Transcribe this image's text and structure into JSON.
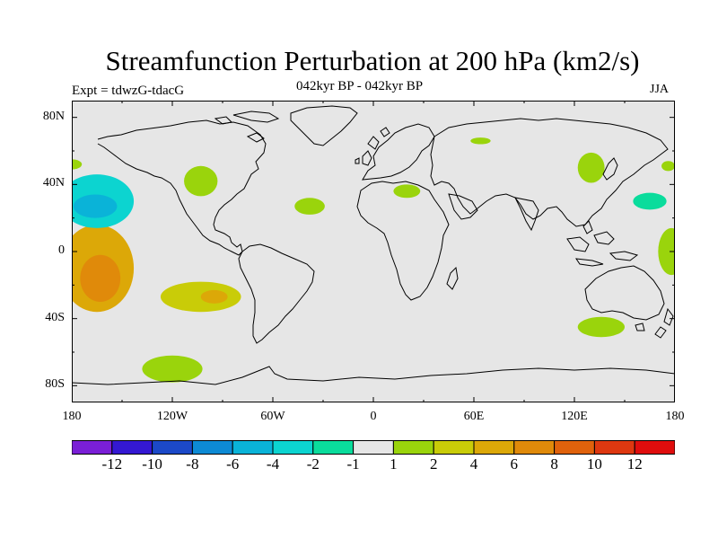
{
  "title": "Streamfunction Perturbation at 200 hPa (km2/s)",
  "left_string": "Expt = tdwzG-tdacG",
  "center_string": "042kyr BP - 042kyr BP",
  "right_string": "JJA",
  "colors": {
    "background": "#e6e6e6",
    "coast": "#000000"
  },
  "lat_labels": [
    {
      "text": "80N",
      "lat": 80
    },
    {
      "text": "40N",
      "lat": 40
    },
    {
      "text": "0",
      "lat": 0
    },
    {
      "text": "40S",
      "lat": -40
    },
    {
      "text": "80S",
      "lat": -80
    }
  ],
  "lon_labels": [
    {
      "text": "180",
      "lon": -180
    },
    {
      "text": "120W",
      "lon": -120
    },
    {
      "text": "60W",
      "lon": -60
    },
    {
      "text": "0",
      "lon": 0
    },
    {
      "text": "60E",
      "lon": 60
    },
    {
      "text": "120E",
      "lon": 120
    },
    {
      "text": "180",
      "lon": 180
    }
  ],
  "colorbar": {
    "colors": [
      "#7a1fd6",
      "#3418d2",
      "#1c49c8",
      "#0d8ad4",
      "#0ab3d8",
      "#0cd4d0",
      "#0adc9c",
      "#e6e6e6",
      "#9ad40c",
      "#c9cc08",
      "#dca808",
      "#e08a0a",
      "#e0620c",
      "#de3810",
      "#e00d0d"
    ],
    "labels": [
      "-12",
      "-10",
      "-8",
      "-6",
      "-4",
      "-2",
      "-1",
      "1",
      "2",
      "4",
      "6",
      "8",
      "10",
      "12"
    ]
  },
  "chart_data": {
    "type": "heatmap",
    "title": "Streamfunction Perturbation at 200 hPa (km2/s)",
    "subtitle": "042kyr BP - 042kyr BP",
    "season": "JJA",
    "experiment": "tdwzG-tdacG",
    "xlim": [
      -180,
      180
    ],
    "ylim": [
      -90,
      90
    ],
    "contour_levels": [
      -12,
      -10,
      -8,
      -6,
      -4,
      -2,
      -1,
      1,
      2,
      4,
      6,
      8,
      10,
      12
    ],
    "anomalies": [
      {
        "lon": -165,
        "lat": -10,
        "rx": 22,
        "ry": 26,
        "value": 4
      },
      {
        "lon": -163,
        "lat": -16,
        "rx": 12,
        "ry": 14,
        "value": 6
      },
      {
        "lon": -165,
        "lat": 30,
        "rx": 22,
        "ry": 16,
        "value": -4
      },
      {
        "lon": -166,
        "lat": 27,
        "rx": 13,
        "ry": 7,
        "value": -6
      },
      {
        "lon": -103,
        "lat": -27,
        "rx": 24,
        "ry": 9,
        "value": 2
      },
      {
        "lon": -95,
        "lat": -27,
        "rx": 8,
        "ry": 4,
        "value": 4
      },
      {
        "lon": -103,
        "lat": 42,
        "rx": 10,
        "ry": 9,
        "value": 1
      },
      {
        "lon": -72,
        "lat": 44,
        "rx": 9,
        "ry": 6,
        "value": -1
      },
      {
        "lon": -38,
        "lat": 27,
        "rx": 9,
        "ry": 5,
        "value": 1
      },
      {
        "lon": -45,
        "lat": -20,
        "rx": 6,
        "ry": 12,
        "value": -1
      },
      {
        "lon": -70,
        "lat": -51,
        "rx": 6,
        "ry": 4,
        "value": -1
      },
      {
        "lon": -120,
        "lat": -70,
        "rx": 18,
        "ry": 8,
        "value": 1
      },
      {
        "lon": -172,
        "lat": 65,
        "rx": 6,
        "ry": 3,
        "value": -1
      },
      {
        "lon": -180,
        "lat": 52,
        "rx": 6,
        "ry": 3,
        "value": 1
      },
      {
        "lon": -10,
        "lat": 54,
        "rx": 13,
        "ry": 11,
        "value": -1
      },
      {
        "lon": 20,
        "lat": 36,
        "rx": 8,
        "ry": 4,
        "value": 1
      },
      {
        "lon": 48,
        "lat": 48,
        "rx": 16,
        "ry": 7,
        "value": -1
      },
      {
        "lon": 64,
        "lat": 66,
        "rx": 6,
        "ry": 2,
        "value": 1
      },
      {
        "lon": 28,
        "lat": -20,
        "rx": 18,
        "ry": 9,
        "value": -1
      },
      {
        "lon": 125,
        "lat": -14,
        "rx": 28,
        "ry": 18,
        "value": -1
      },
      {
        "lon": 97,
        "lat": -22,
        "rx": 18,
        "ry": 12,
        "value": -1
      },
      {
        "lon": 136,
        "lat": -45,
        "rx": 14,
        "ry": 6,
        "value": 1
      },
      {
        "lon": 160,
        "lat": -28,
        "rx": 14,
        "ry": 9,
        "value": -1
      },
      {
        "lon": 155,
        "lat": 35,
        "rx": 28,
        "ry": 10,
        "value": -1
      },
      {
        "lon": 165,
        "lat": 30,
        "rx": 10,
        "ry": 5,
        "value": -2
      },
      {
        "lon": 130,
        "lat": 50,
        "rx": 8,
        "ry": 9,
        "value": 1
      },
      {
        "lon": 100,
        "lat": -68,
        "rx": 14,
        "ry": 5,
        "value": -1
      },
      {
        "lon": 178,
        "lat": 0,
        "rx": 8,
        "ry": 14,
        "value": 1
      },
      {
        "lon": 176,
        "lat": 70,
        "rx": 6,
        "ry": 3,
        "value": -1
      },
      {
        "lon": 176,
        "lat": 51,
        "rx": 4,
        "ry": 3,
        "value": 1
      }
    ]
  }
}
